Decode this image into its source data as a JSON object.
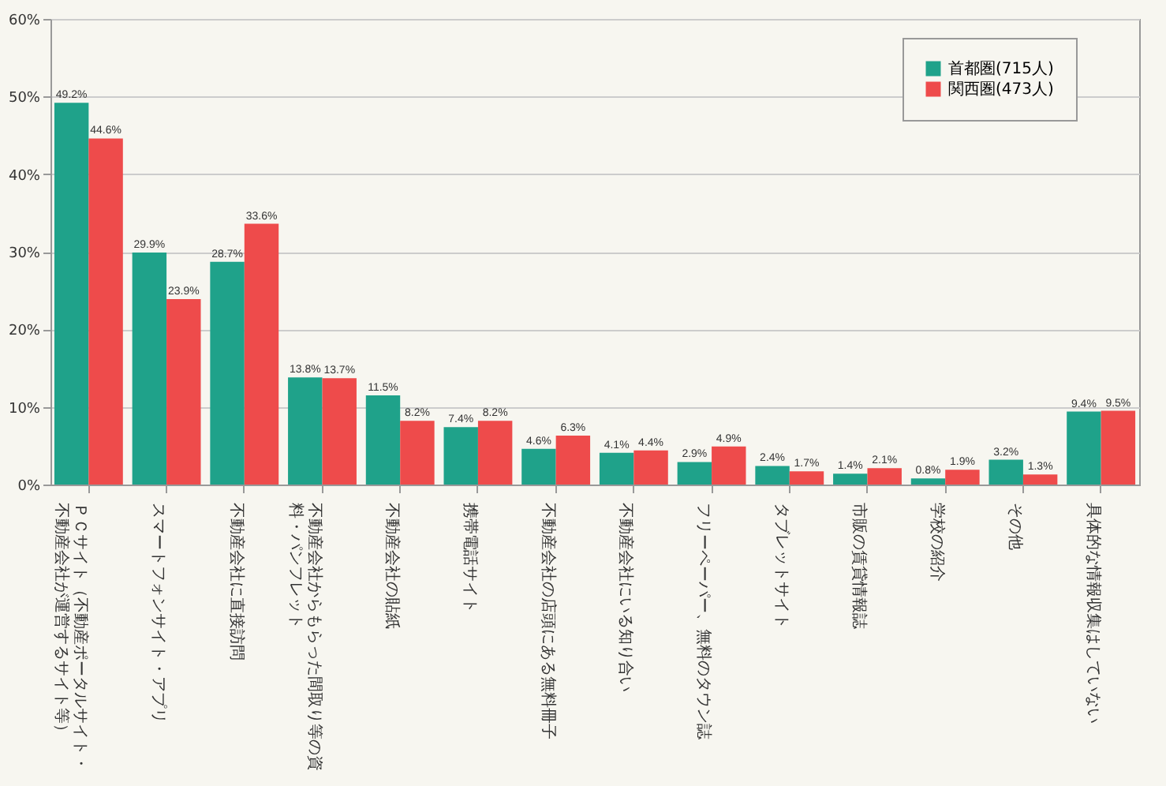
{
  "chart_data": {
    "type": "bar",
    "categories": [
      "ＰＣサイト（不動産ポータルサイト・不動産会社が運営するサイト等）",
      "スマートフォンサイト・アプリ",
      "不動産会社に直接訪問",
      "不動産会社からもらった間取り等の資料・パンフレット",
      "不動産会社の貼紙",
      "携帯電話サイト",
      "不動産会社の店頭にある無料冊子",
      "不動産会社にいる知り合い",
      "フリーペーパー、無料のタウン誌",
      "タブレットサイト",
      "市販の賃貸情報誌",
      "学校の紹介",
      "その他",
      "具体的な情報収集はしていない"
    ],
    "series": [
      {
        "name": "首都圏(715人)",
        "color": "#1fa28a",
        "values": [
          49.2,
          29.9,
          28.7,
          13.8,
          11.5,
          7.4,
          4.6,
          4.1,
          2.9,
          2.4,
          1.4,
          0.8,
          3.2,
          9.4
        ],
        "value_labels": [
          "49.2%",
          "29.9%",
          "28.7%",
          "13.8%",
          "11.5%",
          "7.4%",
          "4.6%",
          "4.1%",
          "2.9%",
          "2.4%",
          "1.4%",
          "0.8%",
          "3.2%",
          "9.4%"
        ]
      },
      {
        "name": "関西圏(473人)",
        "color": "#ee4b4b",
        "values": [
          44.6,
          23.9,
          33.6,
          13.7,
          8.2,
          8.2,
          6.3,
          4.4,
          4.9,
          1.7,
          2.1,
          1.9,
          1.3,
          9.5
        ],
        "value_labels": [
          "44.6%",
          "23.9%",
          "33.6%",
          "13.7%",
          "8.2%",
          "8.2%",
          "6.3%",
          "4.4%",
          "4.9%",
          "1.7%",
          "2.1%",
          "1.9%",
          "1.3%",
          "9.5%"
        ]
      }
    ],
    "ylim": [
      0,
      60
    ],
    "yticks": [
      {
        "value": 0,
        "label": "0%"
      },
      {
        "value": 10,
        "label": "10%"
      },
      {
        "value": 20,
        "label": "20%"
      },
      {
        "value": 30,
        "label": "30%"
      },
      {
        "value": 40,
        "label": "40%"
      },
      {
        "value": 50,
        "label": "50%"
      },
      {
        "value": 60,
        "label": "60%"
      }
    ],
    "grid": "y",
    "legend": "top right"
  }
}
